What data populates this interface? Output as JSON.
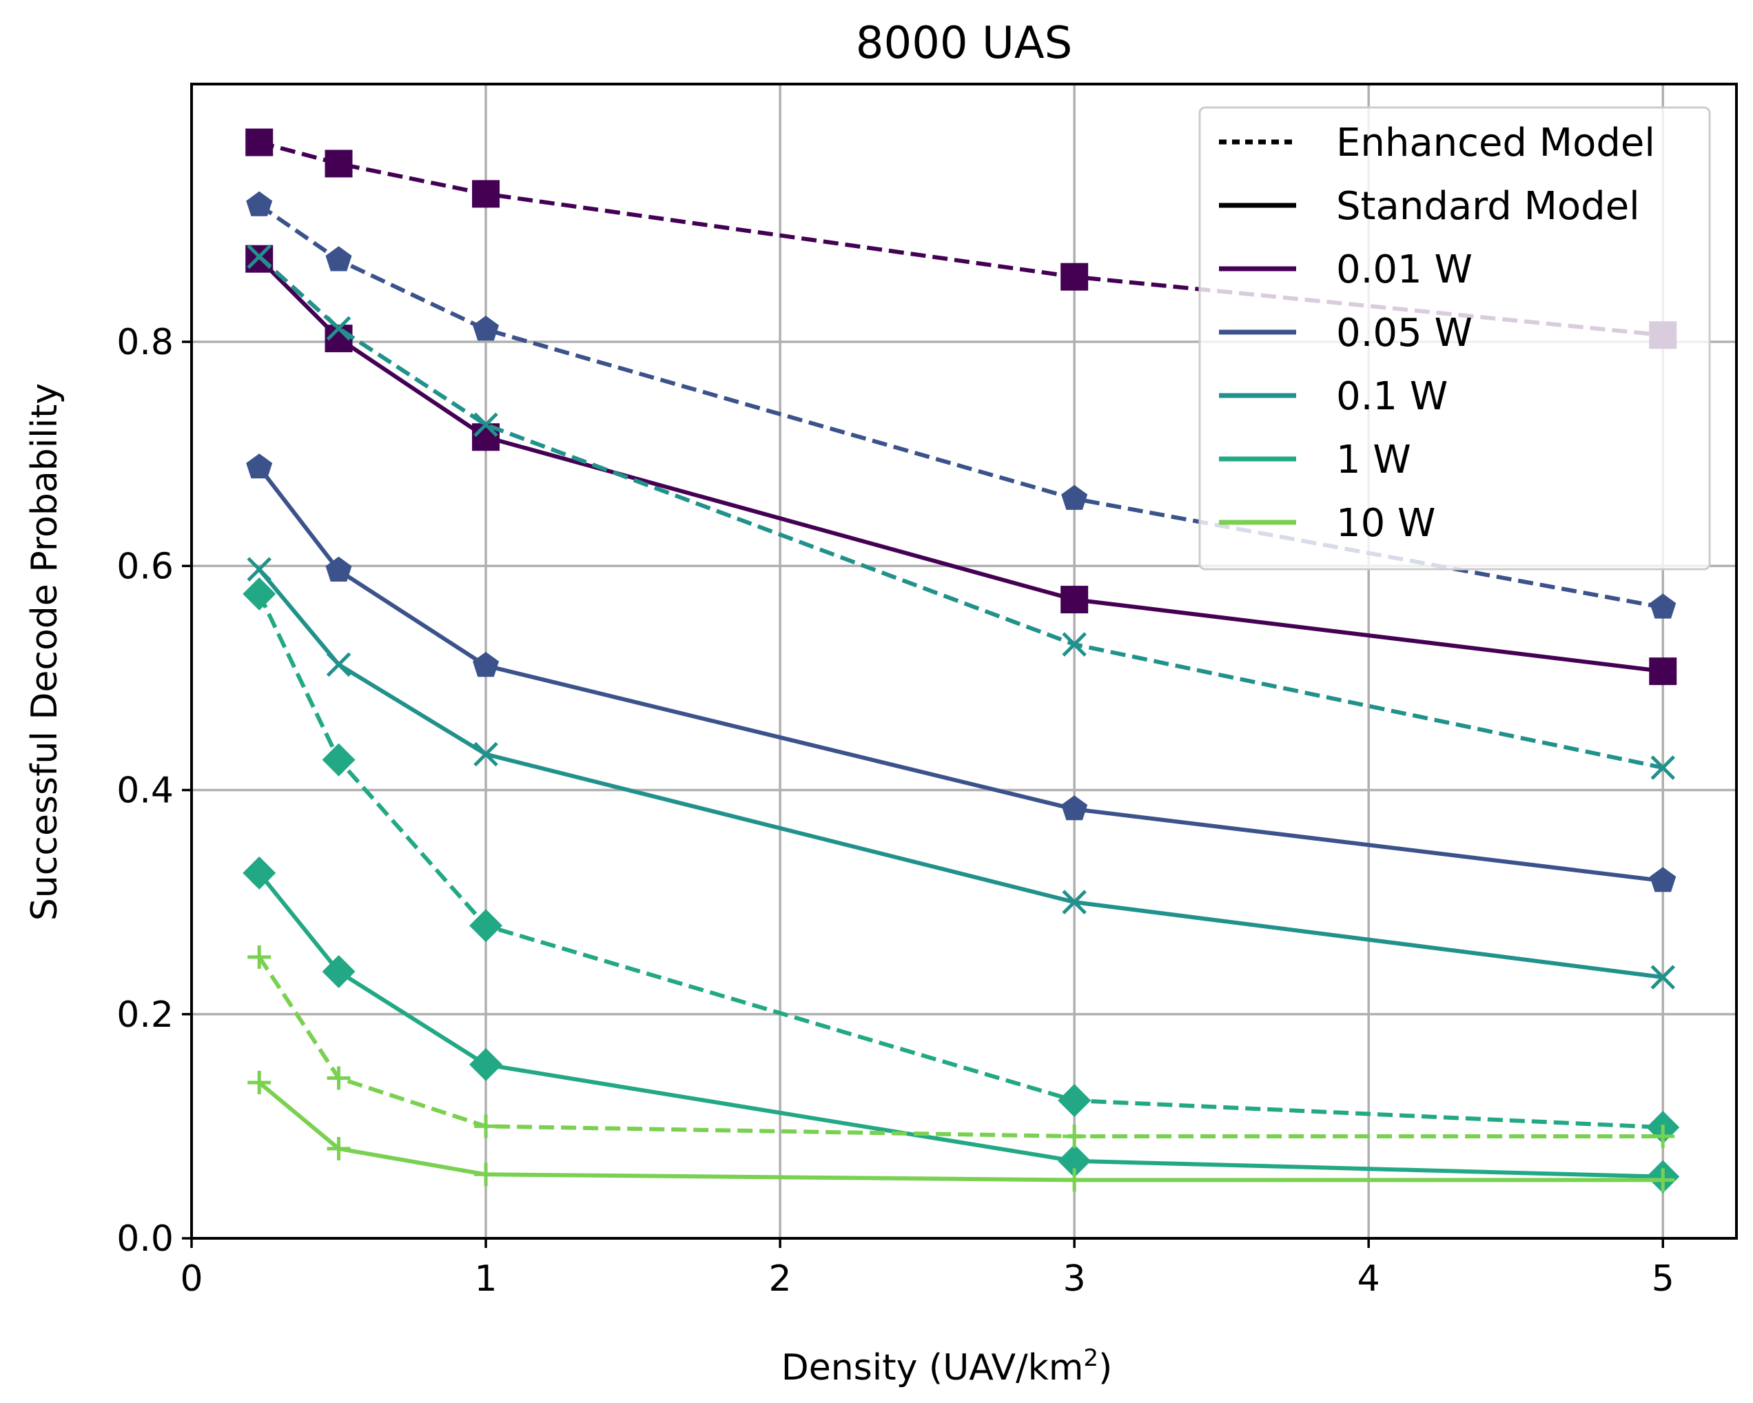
{
  "chart_data": {
    "type": "line",
    "title": "8000 UAS",
    "xlabel": "Density (UAV/km",
    "xlabel_sup": "2",
    "xlabel_end": ")",
    "ylabel": "Successful Decode Probability",
    "xlim": [
      0,
      5.25
    ],
    "ylim": [
      0,
      1.03
    ],
    "xticks": [
      0,
      1,
      2,
      3,
      4,
      5
    ],
    "yticks": [
      0.0,
      0.2,
      0.4,
      0.6,
      0.8
    ],
    "xtick_labels": [
      "0",
      "1",
      "2",
      "3",
      "4",
      "5"
    ],
    "ytick_labels": [
      "0.0",
      "0.2",
      "0.4",
      "0.6",
      "0.8"
    ],
    "grid": true,
    "x": [
      0.23,
      0.5,
      1,
      3,
      5
    ],
    "series": [
      {
        "name": "0.01 W",
        "model": "Enhanced Model",
        "color": "#440154",
        "marker": "square",
        "values": [
          0.978,
          0.959,
          0.932,
          0.858,
          0.806
        ]
      },
      {
        "name": "0.01 W",
        "model": "Standard Model",
        "color": "#440154",
        "marker": "square",
        "values": [
          0.874,
          0.803,
          0.715,
          0.57,
          0.506
        ]
      },
      {
        "name": "0.05 W",
        "model": "Enhanced Model",
        "color": "#3b528b",
        "marker": "pentagon",
        "values": [
          0.922,
          0.873,
          0.811,
          0.66,
          0.563
        ]
      },
      {
        "name": "0.05 W",
        "model": "Standard Model",
        "color": "#3b528b",
        "marker": "pentagon",
        "values": [
          0.688,
          0.596,
          0.511,
          0.383,
          0.319
        ]
      },
      {
        "name": "0.1 W",
        "model": "Enhanced Model",
        "color": "#21918c",
        "marker": "x",
        "values": [
          0.876,
          0.812,
          0.726,
          0.53,
          0.42
        ]
      },
      {
        "name": "0.1 W",
        "model": "Standard Model",
        "color": "#21918c",
        "marker": "x",
        "values": [
          0.597,
          0.512,
          0.432,
          0.3,
          0.233
        ]
      },
      {
        "name": "1 W",
        "model": "Enhanced Model",
        "color": "#22a884",
        "marker": "diamond",
        "values": [
          0.575,
          0.427,
          0.279,
          0.123,
          0.099
        ]
      },
      {
        "name": "1 W",
        "model": "Standard Model",
        "color": "#22a884",
        "marker": "diamond",
        "values": [
          0.326,
          0.238,
          0.155,
          0.069,
          0.055
        ]
      },
      {
        "name": "10 W",
        "model": "Enhanced Model",
        "color": "#7ad151",
        "marker": "plus",
        "values": [
          0.251,
          0.143,
          0.1,
          0.091,
          0.091
        ]
      },
      {
        "name": "10 W",
        "model": "Standard Model",
        "color": "#7ad151",
        "marker": "plus",
        "values": [
          0.139,
          0.08,
          0.057,
          0.052,
          0.052
        ]
      }
    ],
    "legend": {
      "position": "top-right",
      "entries": [
        {
          "label": "Enhanced Model",
          "style": "dotted",
          "color": "#000000"
        },
        {
          "label": "Standard Model",
          "style": "solid",
          "color": "#000000"
        },
        {
          "label": "0.01 W",
          "style": "solid",
          "color": "#440154"
        },
        {
          "label": "0.05 W",
          "style": "solid",
          "color": "#3b528b"
        },
        {
          "label": "0.1 W",
          "style": "solid",
          "color": "#21918c"
        },
        {
          "label": "1 W",
          "style": "solid",
          "color": "#22a884"
        },
        {
          "label": "10 W",
          "style": "solid",
          "color": "#7ad151"
        }
      ]
    }
  }
}
